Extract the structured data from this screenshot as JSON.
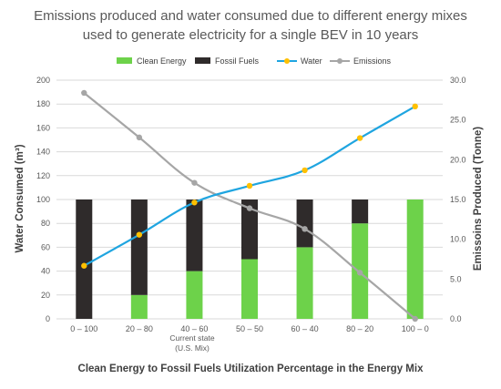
{
  "chart_data": {
    "type": "bar",
    "title_lines": [
      "Emissions produced and water consumed due to different energy mixes",
      "used to generate electricity for a single BEV in 10 years"
    ],
    "categories": [
      "0 – 100",
      "20 – 80",
      "40 – 60",
      "50 – 50",
      "60 – 40",
      "80 – 20",
      "100 – 0"
    ],
    "category_note": [
      "Current state",
      "(U.S. Mix)"
    ],
    "xlabel": "Clean Energy to Fossil Fuels Utilization Percentage in the Energy Mix",
    "ylabel_left": "Water Consumed (m³)",
    "ylabel_right": "Emissoins Produced (Tonne)",
    "ylim_left": [
      0,
      200
    ],
    "ylim_right": [
      0,
      30
    ],
    "yticks_left": [
      "0",
      "20",
      "40",
      "60",
      "80",
      "100",
      "120",
      "140",
      "160",
      "180",
      "200"
    ],
    "yticks_right": [
      "0.0",
      "5.0",
      "10.0",
      "15.0",
      "20.0",
      "25.0",
      "30.0"
    ],
    "grid": true,
    "legend_position": "top",
    "series": [
      {
        "name": "Clean Energy",
        "kind": "stacked-bar",
        "axis": "left",
        "color": "#6dd24a",
        "values": [
          0,
          20,
          40,
          50,
          60,
          80,
          100
        ]
      },
      {
        "name": "Fossil Fuels",
        "kind": "stacked-bar",
        "axis": "left",
        "color": "#2f2b2b",
        "values": [
          100,
          80,
          60,
          50,
          40,
          20,
          0
        ]
      },
      {
        "name": "Water",
        "kind": "line",
        "axis": "left",
        "color": "#1fa5e0",
        "marker_color": "#ffc000",
        "values": [
          44.5,
          70.5,
          97.5,
          111.5,
          124.5,
          151.5,
          178
        ]
      },
      {
        "name": "Emissions",
        "kind": "line",
        "axis": "right",
        "color": "#a6a6a6",
        "marker_color": "#a6a6a6",
        "values": [
          28.4,
          22.8,
          17.1,
          13.9,
          11.3,
          5.8,
          0.0
        ]
      }
    ]
  }
}
